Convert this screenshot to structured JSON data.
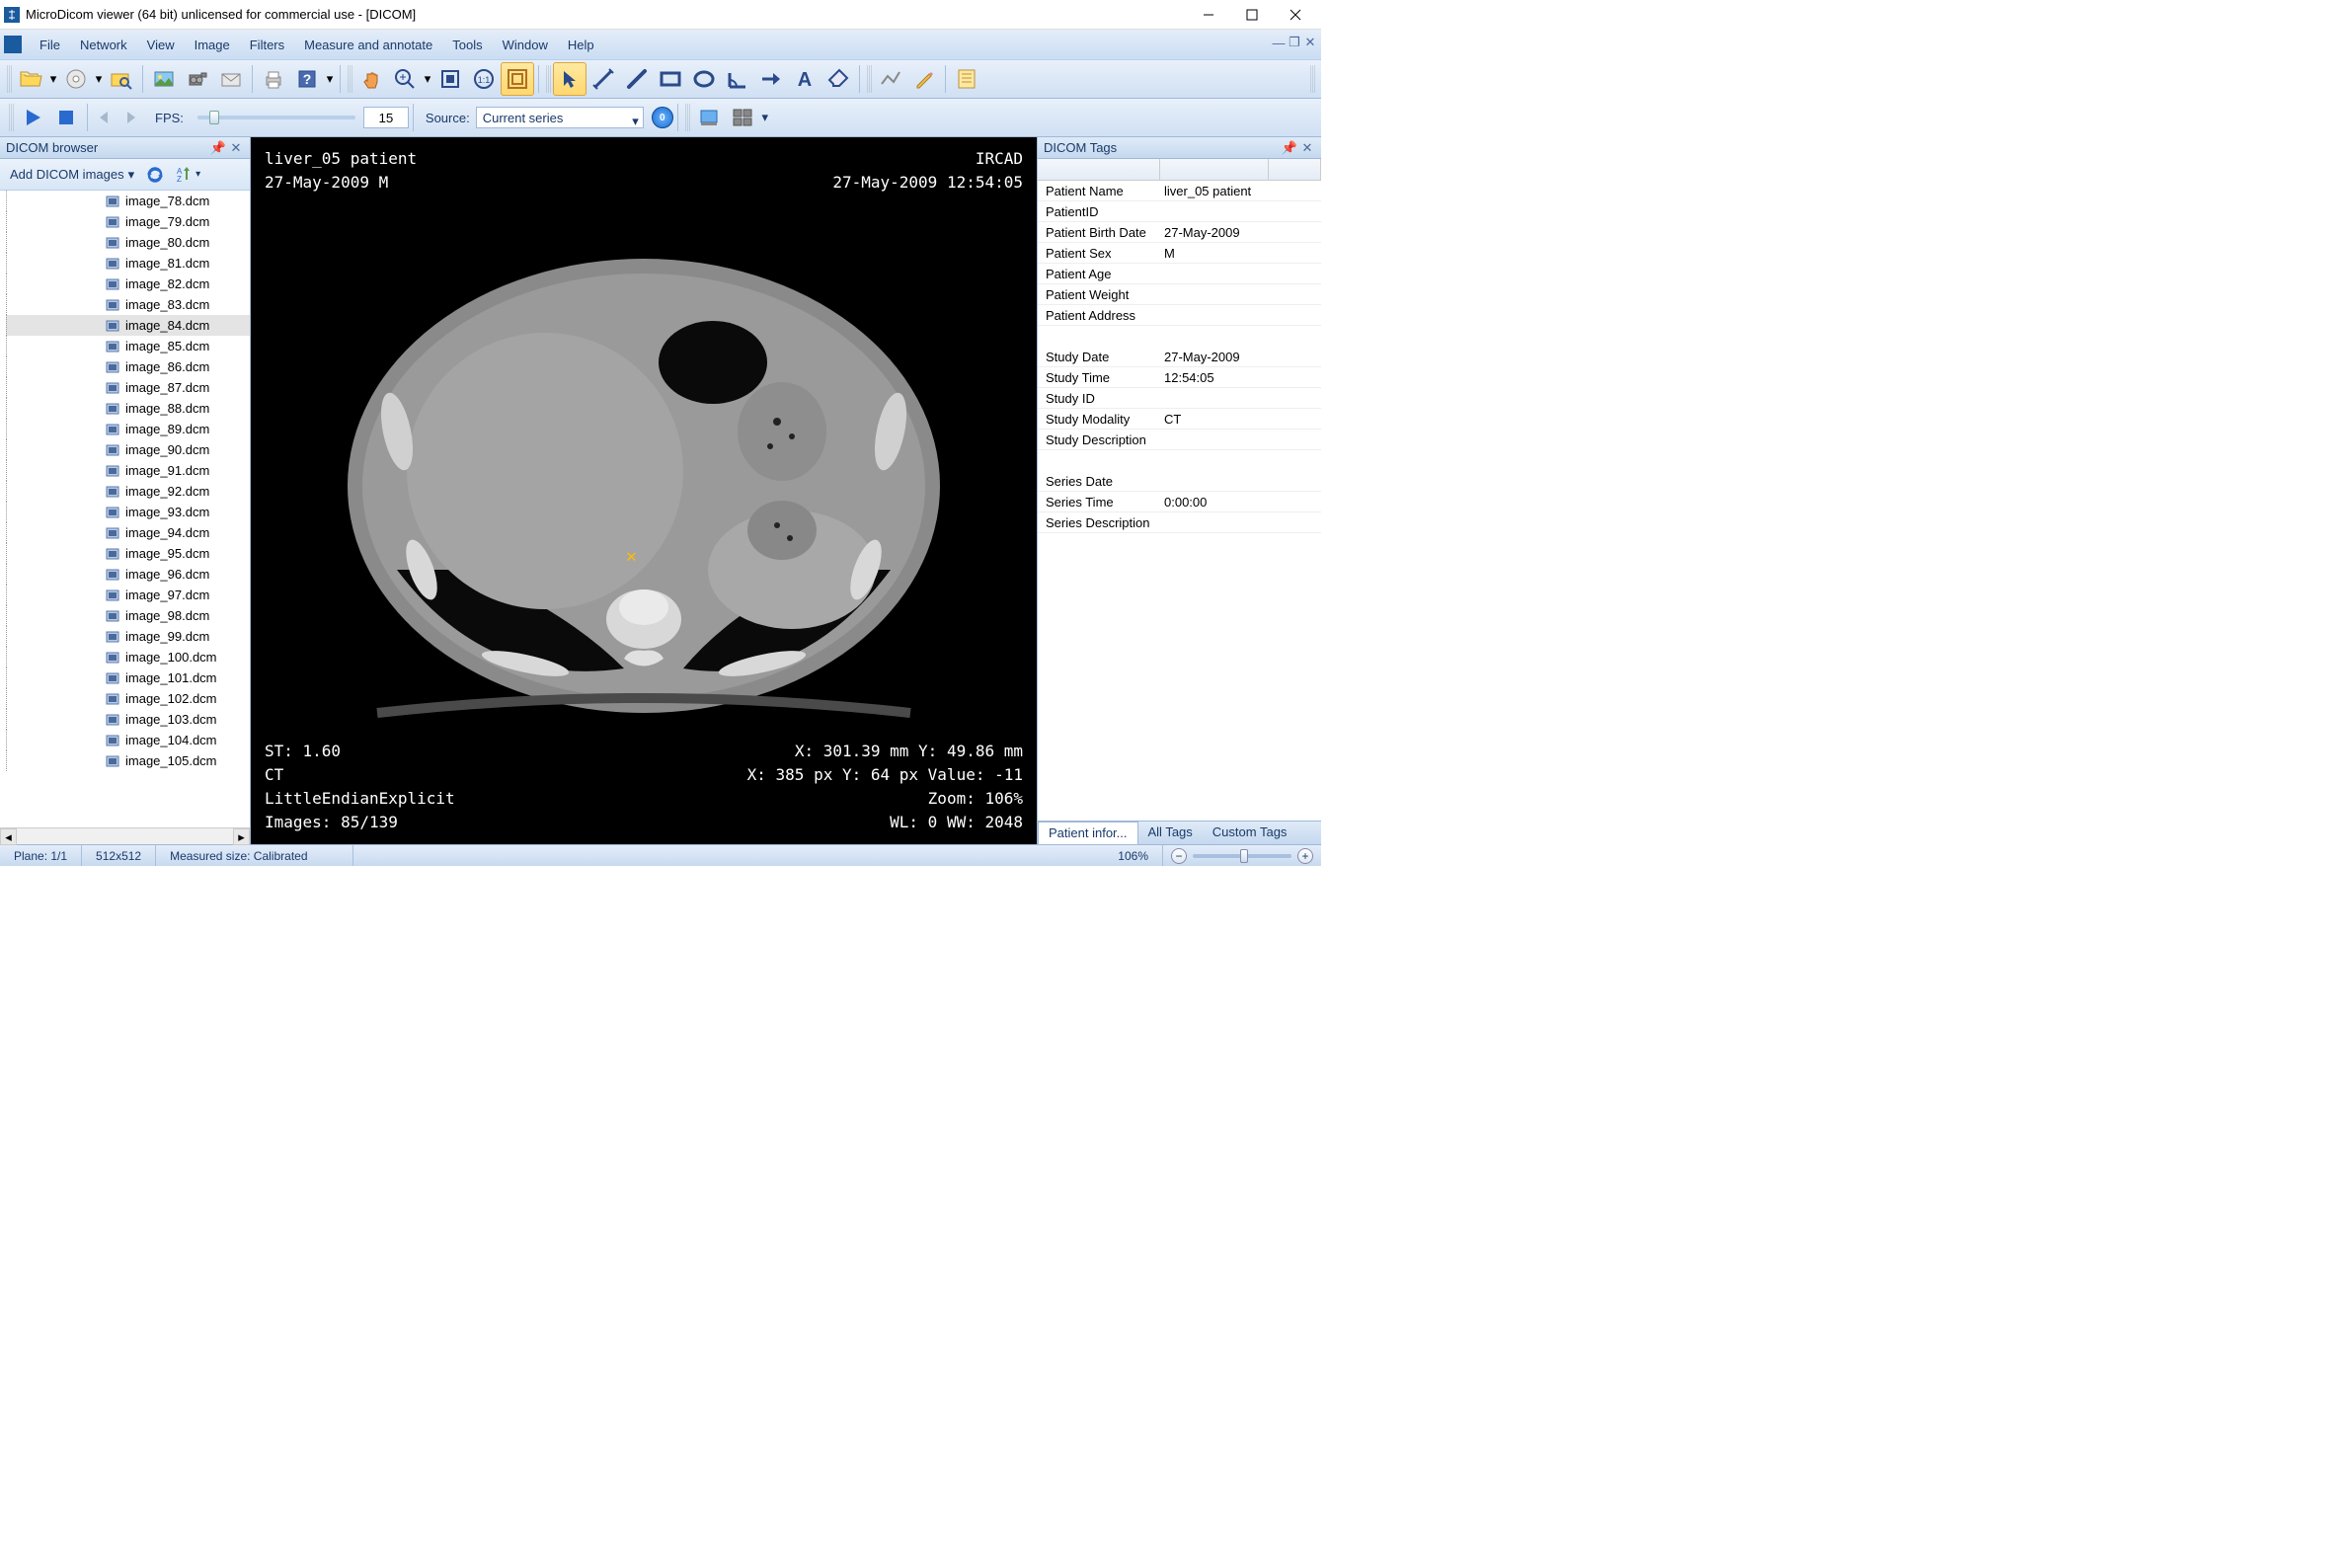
{
  "window": {
    "title": "MicroDicom viewer (64 bit) unlicensed for commercial use - [DICOM]"
  },
  "menu": [
    "File",
    "Network",
    "View",
    "Image",
    "Filters",
    "Measure and annotate",
    "Tools",
    "Window",
    "Help"
  ],
  "toolbar2": {
    "fps_label": "FPS:",
    "fps_value": "15",
    "source_label": "Source:",
    "source_value": "Current series",
    "round_value": "0"
  },
  "left_panel": {
    "title": "DICOM browser",
    "add_label": "Add DICOM images",
    "files": [
      "image_78.dcm",
      "image_79.dcm",
      "image_80.dcm",
      "image_81.dcm",
      "image_82.dcm",
      "image_83.dcm",
      "image_84.dcm",
      "image_85.dcm",
      "image_86.dcm",
      "image_87.dcm",
      "image_88.dcm",
      "image_89.dcm",
      "image_90.dcm",
      "image_91.dcm",
      "image_92.dcm",
      "image_93.dcm",
      "image_94.dcm",
      "image_95.dcm",
      "image_96.dcm",
      "image_97.dcm",
      "image_98.dcm",
      "image_99.dcm",
      "image_100.dcm",
      "image_101.dcm",
      "image_102.dcm",
      "image_103.dcm",
      "image_104.dcm",
      "image_105.dcm"
    ],
    "selected": "image_84.dcm"
  },
  "viewer": {
    "tl_line1": "liver_05 patient",
    "tl_line2": "27-May-2009 M",
    "tr_line1": "IRCAD",
    "tr_line2": "27-May-2009 12:54:05",
    "bl_line1": "ST: 1.60",
    "bl_line2": "CT",
    "bl_line3": "LittleEndianExplicit",
    "bl_line4": "Images: 85/139",
    "br_line1": "X: 301.39 mm Y: 49.86 mm",
    "br_line2": "X: 385 px Y: 64 px Value: -11",
    "br_line3": "Zoom: 106%",
    "br_line4": "WL: 0 WW: 2048"
  },
  "right_panel": {
    "title": "DICOM Tags",
    "rows": [
      {
        "name": "Patient Name",
        "value": "liver_05 patient"
      },
      {
        "name": "PatientID",
        "value": ""
      },
      {
        "name": "Patient Birth Date",
        "value": "27-May-2009"
      },
      {
        "name": "Patient Sex",
        "value": "M"
      },
      {
        "name": "Patient Age",
        "value": ""
      },
      {
        "name": "Patient Weight",
        "value": ""
      },
      {
        "name": "Patient Address",
        "value": ""
      },
      {
        "name": "",
        "value": ""
      },
      {
        "name": "Study Date",
        "value": "27-May-2009"
      },
      {
        "name": "Study Time",
        "value": "12:54:05"
      },
      {
        "name": "Study ID",
        "value": ""
      },
      {
        "name": "Study Modality",
        "value": "CT"
      },
      {
        "name": "Study Description",
        "value": ""
      },
      {
        "name": "",
        "value": ""
      },
      {
        "name": "Series Date",
        "value": ""
      },
      {
        "name": "Series Time",
        "value": "0:00:00"
      },
      {
        "name": "Series Description",
        "value": ""
      }
    ],
    "tabs": [
      "Patient infor...",
      "All Tags",
      "Custom Tags"
    ]
  },
  "statusbar": {
    "plane": "Plane: 1/1",
    "size": "512x512",
    "measured": "Measured size: Calibrated",
    "zoom": "106%"
  }
}
